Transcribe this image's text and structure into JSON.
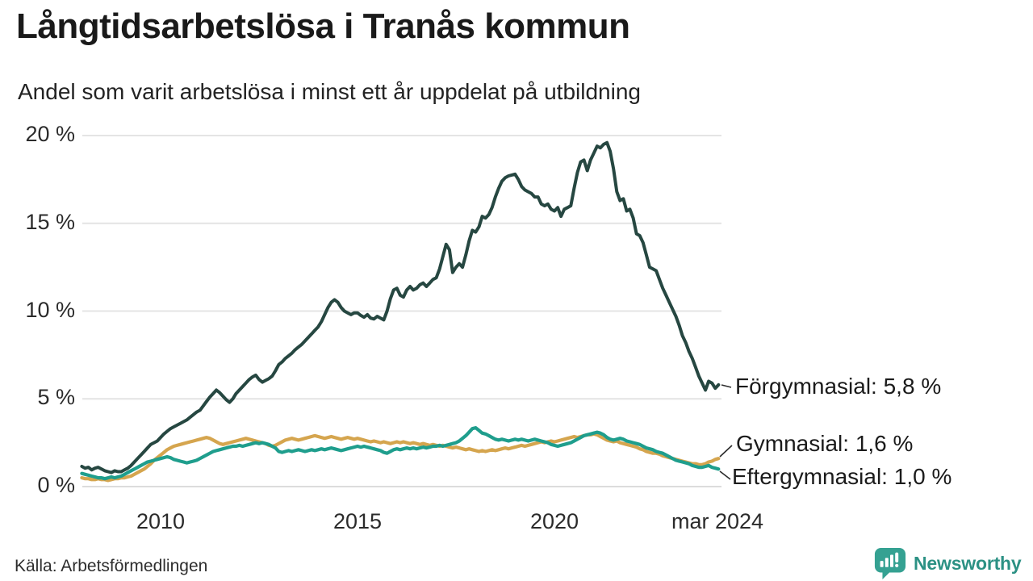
{
  "header": {
    "title": "Långtidsarbetslösa i Tranås kommun",
    "subtitle": "Andel som varit arbetslösa i minst ett år uppdelat på utbildning"
  },
  "source": {
    "label": "Källa: Arbetsförmedlingen"
  },
  "branding": {
    "name": "Newsworthy",
    "logo_icon": "speech-bubble-bar-chart",
    "logo_color": "#35a192",
    "text_color": "#2c9184"
  },
  "chart_data": {
    "type": "line",
    "title": "Långtidsarbetslösa i Tranås kommun",
    "subtitle": "Andel som varit arbetslösa i minst ett år uppdelat på utbildning",
    "xlabel": "",
    "ylabel": "",
    "grid": "horizontal-only",
    "legend_position": "end-of-line-labels",
    "x_frequency": "monthly",
    "x_start_year": 2008.0,
    "x_end_year": 2024.1667,
    "x_tick_years": [
      2010,
      2015,
      2020,
      2024.1667
    ],
    "x_tick_labels": [
      "2010",
      "2015",
      "2020",
      "mar 2024"
    ],
    "y_ticks": [
      0,
      5,
      10,
      15,
      20
    ],
    "y_tick_labels": [
      "0 %",
      "5 %",
      "10 %",
      "15 %",
      "20 %"
    ],
    "ylim": [
      0,
      20.5
    ],
    "series": [
      {
        "name": "Förgymnasial",
        "end_label": "Förgymnasial: 5,8 %",
        "end_value": 5.8,
        "color": "#264741",
        "values": [
          1.15,
          1.05,
          1.1,
          0.95,
          1.05,
          1.1,
          1.0,
          0.9,
          0.85,
          0.8,
          0.9,
          0.85,
          0.85,
          0.95,
          1.05,
          1.2,
          1.4,
          1.6,
          1.8,
          2.0,
          2.2,
          2.4,
          2.5,
          2.6,
          2.8,
          3.0,
          3.15,
          3.3,
          3.4,
          3.5,
          3.6,
          3.7,
          3.8,
          3.95,
          4.1,
          4.25,
          4.35,
          4.6,
          4.85,
          5.1,
          5.3,
          5.5,
          5.35,
          5.15,
          4.95,
          4.8,
          5.0,
          5.3,
          5.5,
          5.7,
          5.9,
          6.1,
          6.25,
          6.35,
          6.1,
          5.95,
          6.05,
          6.15,
          6.3,
          6.6,
          6.95,
          7.1,
          7.3,
          7.45,
          7.6,
          7.8,
          7.95,
          8.1,
          8.3,
          8.5,
          8.7,
          8.9,
          9.1,
          9.4,
          9.8,
          10.2,
          10.5,
          10.65,
          10.5,
          10.2,
          10.0,
          9.9,
          9.8,
          9.9,
          9.9,
          9.75,
          9.65,
          9.8,
          9.6,
          9.55,
          9.7,
          9.6,
          9.5,
          10.0,
          10.7,
          11.2,
          11.3,
          10.9,
          10.8,
          11.2,
          11.4,
          11.2,
          11.3,
          11.5,
          11.6,
          11.4,
          11.6,
          11.8,
          11.9,
          12.4,
          13.1,
          13.8,
          13.5,
          12.2,
          12.5,
          12.7,
          12.5,
          13.2,
          14.0,
          14.6,
          14.5,
          14.8,
          15.4,
          15.3,
          15.5,
          15.9,
          16.5,
          17.0,
          17.4,
          17.6,
          17.7,
          17.75,
          17.8,
          17.5,
          17.1,
          16.9,
          16.8,
          16.7,
          16.5,
          16.5,
          16.1,
          16.0,
          16.1,
          15.8,
          15.7,
          15.9,
          15.4,
          15.8,
          15.9,
          16.0,
          17.0,
          17.9,
          18.5,
          18.6,
          18.0,
          18.6,
          19.0,
          19.4,
          19.3,
          19.5,
          19.6,
          19.1,
          18.1,
          16.8,
          16.3,
          16.4,
          15.7,
          15.8,
          15.3,
          14.4,
          14.3,
          13.9,
          13.2,
          12.5,
          12.4,
          12.3,
          11.8,
          11.3,
          10.9,
          10.5,
          10.1,
          9.7,
          9.2,
          8.6,
          8.2,
          7.7,
          7.3,
          6.8,
          6.3,
          5.9,
          5.5,
          6.0,
          5.9,
          5.6,
          5.8
        ]
      },
      {
        "name": "Gymnasial",
        "end_label": "Gymnasial: 1,6 %",
        "end_value": 1.6,
        "color": "#d5a54e",
        "values": [
          0.5,
          0.45,
          0.45,
          0.4,
          0.4,
          0.45,
          0.4,
          0.4,
          0.35,
          0.4,
          0.45,
          0.45,
          0.5,
          0.5,
          0.55,
          0.6,
          0.7,
          0.8,
          0.9,
          1.0,
          1.15,
          1.3,
          1.5,
          1.65,
          1.8,
          1.95,
          2.1,
          2.2,
          2.3,
          2.35,
          2.4,
          2.45,
          2.5,
          2.55,
          2.6,
          2.65,
          2.7,
          2.75,
          2.8,
          2.75,
          2.65,
          2.55,
          2.45,
          2.4,
          2.45,
          2.5,
          2.55,
          2.6,
          2.65,
          2.7,
          2.75,
          2.7,
          2.65,
          2.6,
          2.55,
          2.5,
          2.45,
          2.35,
          2.3,
          2.35,
          2.45,
          2.55,
          2.65,
          2.7,
          2.75,
          2.7,
          2.65,
          2.7,
          2.75,
          2.8,
          2.85,
          2.9,
          2.85,
          2.8,
          2.75,
          2.8,
          2.85,
          2.8,
          2.75,
          2.7,
          2.75,
          2.8,
          2.75,
          2.7,
          2.75,
          2.7,
          2.65,
          2.6,
          2.55,
          2.6,
          2.55,
          2.5,
          2.55,
          2.5,
          2.45,
          2.5,
          2.55,
          2.5,
          2.55,
          2.5,
          2.45,
          2.5,
          2.45,
          2.4,
          2.45,
          2.4,
          2.35,
          2.4,
          2.35,
          2.3,
          2.35,
          2.3,
          2.25,
          2.2,
          2.25,
          2.2,
          2.15,
          2.1,
          2.15,
          2.1,
          2.05,
          2.0,
          2.05,
          2.0,
          2.05,
          2.1,
          2.05,
          2.1,
          2.15,
          2.2,
          2.15,
          2.2,
          2.25,
          2.3,
          2.35,
          2.3,
          2.35,
          2.4,
          2.45,
          2.5,
          2.55,
          2.5,
          2.55,
          2.6,
          2.55,
          2.6,
          2.65,
          2.7,
          2.75,
          2.8,
          2.85,
          2.8,
          2.85,
          2.9,
          2.95,
          2.95,
          3.0,
          2.95,
          2.85,
          2.75,
          2.65,
          2.6,
          2.55,
          2.6,
          2.5,
          2.45,
          2.4,
          2.35,
          2.3,
          2.25,
          2.15,
          2.1,
          2.0,
          1.95,
          1.9,
          1.9,
          1.85,
          1.75,
          1.7,
          1.65,
          1.6,
          1.55,
          1.5,
          1.45,
          1.4,
          1.35,
          1.3,
          1.3,
          1.25,
          1.25,
          1.3,
          1.4,
          1.45,
          1.55,
          1.6
        ]
      },
      {
        "name": "Eftergymnasial",
        "end_label": "Eftergymnasial: 1,0 %",
        "end_value": 1.0,
        "color": "#1f9e8d",
        "values": [
          0.75,
          0.7,
          0.65,
          0.6,
          0.55,
          0.5,
          0.5,
          0.45,
          0.5,
          0.55,
          0.5,
          0.55,
          0.6,
          0.7,
          0.8,
          0.9,
          1.0,
          1.1,
          1.2,
          1.3,
          1.4,
          1.45,
          1.5,
          1.55,
          1.6,
          1.65,
          1.7,
          1.65,
          1.55,
          1.5,
          1.45,
          1.4,
          1.35,
          1.4,
          1.45,
          1.5,
          1.6,
          1.7,
          1.8,
          1.9,
          2.0,
          2.05,
          2.1,
          2.15,
          2.2,
          2.25,
          2.3,
          2.3,
          2.35,
          2.3,
          2.35,
          2.4,
          2.45,
          2.5,
          2.45,
          2.5,
          2.45,
          2.4,
          2.3,
          2.2,
          2.0,
          1.95,
          2.0,
          2.05,
          2.0,
          2.05,
          2.1,
          2.05,
          2.0,
          2.05,
          2.1,
          2.05,
          2.1,
          2.15,
          2.1,
          2.15,
          2.2,
          2.15,
          2.1,
          2.05,
          2.1,
          2.15,
          2.2,
          2.25,
          2.3,
          2.25,
          2.3,
          2.25,
          2.2,
          2.15,
          2.1,
          2.05,
          1.95,
          1.9,
          2.0,
          2.1,
          2.15,
          2.1,
          2.15,
          2.2,
          2.15,
          2.2,
          2.15,
          2.2,
          2.25,
          2.2,
          2.25,
          2.3,
          2.3,
          2.35,
          2.3,
          2.35,
          2.4,
          2.45,
          2.5,
          2.6,
          2.75,
          2.9,
          3.1,
          3.3,
          3.35,
          3.2,
          3.05,
          3.0,
          2.9,
          2.8,
          2.7,
          2.65,
          2.7,
          2.65,
          2.6,
          2.65,
          2.7,
          2.65,
          2.7,
          2.65,
          2.6,
          2.65,
          2.7,
          2.65,
          2.6,
          2.55,
          2.5,
          2.4,
          2.35,
          2.3,
          2.35,
          2.4,
          2.45,
          2.5,
          2.6,
          2.7,
          2.8,
          2.9,
          2.95,
          3.0,
          3.05,
          3.1,
          3.05,
          2.95,
          2.8,
          2.7,
          2.65,
          2.7,
          2.75,
          2.7,
          2.6,
          2.55,
          2.5,
          2.45,
          2.4,
          2.3,
          2.2,
          2.15,
          2.1,
          2.0,
          1.95,
          1.9,
          1.8,
          1.7,
          1.6,
          1.5,
          1.45,
          1.4,
          1.35,
          1.3,
          1.2,
          1.15,
          1.1,
          1.1,
          1.15,
          1.2,
          1.1,
          1.05,
          1.0
        ]
      }
    ]
  }
}
